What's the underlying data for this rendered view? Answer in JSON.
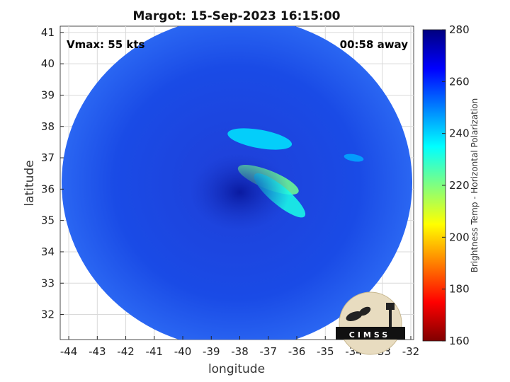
{
  "chart_data": {
    "type": "heatmap",
    "title": "Margot: 15-Sep-2023 16:15:00",
    "xlabel": "longitude",
    "ylabel": "latitude",
    "xlim": [
      -44.3,
      -31.9
    ],
    "ylim": [
      31.2,
      41.2
    ],
    "xticks": [
      -44,
      -43,
      -42,
      -41,
      -40,
      -39,
      -38,
      -37,
      -36,
      -35,
      -34,
      -33,
      -32
    ],
    "yticks": [
      32,
      33,
      34,
      35,
      36,
      37,
      38,
      39,
      40,
      41
    ],
    "grid": true,
    "annotations": {
      "vmax": "Vmax: 55 kts",
      "time_away": "00:58 away"
    },
    "colorbar": {
      "label": "Brightness Temp - Horizontal Polarization",
      "min": 160,
      "max": 280,
      "ticks": [
        160,
        180,
        200,
        220,
        240,
        260,
        280
      ],
      "colormap": [
        "#7f0000",
        "#ff0000",
        "#ff8000",
        "#ffff00",
        "#80ff80",
        "#00ffff",
        "#0080ff",
        "#0000ff",
        "#00007f"
      ]
    },
    "features": {
      "swath_center": [
        -38.1,
        36.2
      ],
      "storm_center": [
        -38.0,
        35.9
      ],
      "bright_bands": [
        {
          "lon": -37.3,
          "lat": 37.6,
          "temp": 238
        },
        {
          "lon": -37.0,
          "lat": 36.3,
          "temp": 222
        },
        {
          "lon": -36.6,
          "lat": 35.8,
          "temp": 232
        },
        {
          "lon": -34.0,
          "lat": 37.0,
          "temp": 245
        }
      ]
    }
  },
  "logo": {
    "text": "CIMSS"
  }
}
